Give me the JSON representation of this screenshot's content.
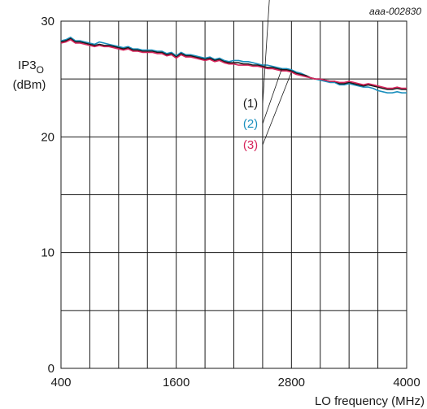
{
  "chart_data": {
    "type": "line",
    "figure_code": "aaa-002830",
    "ylabel": {
      "main": "IP3",
      "sub": "O",
      "unit": "(dBm)"
    },
    "xlabel": "LO frequency (MHz)",
    "xlim": [
      400,
      4000
    ],
    "ylim": [
      0,
      30
    ],
    "x_ticks": [
      400,
      1600,
      2800,
      4000
    ],
    "y_ticks": [
      0,
      10,
      20,
      30
    ],
    "x_grid": [
      400,
      700,
      1000,
      1300,
      1600,
      1900,
      2200,
      2500,
      2800,
      3100,
      3400,
      3700,
      4000
    ],
    "y_grid": [
      0,
      5,
      10,
      15,
      20,
      25,
      30
    ],
    "grid": true,
    "x": [
      400,
      450,
      500,
      550,
      600,
      650,
      700,
      750,
      800,
      850,
      900,
      950,
      1000,
      1050,
      1100,
      1150,
      1200,
      1250,
      1300,
      1350,
      1400,
      1450,
      1500,
      1550,
      1600,
      1650,
      1700,
      1750,
      1800,
      1850,
      1900,
      1950,
      2000,
      2050,
      2100,
      2150,
      2200,
      2250,
      2300,
      2350,
      2400,
      2450,
      2500,
      2550,
      2600,
      2650,
      2700,
      2750,
      2800,
      2850,
      2900,
      2950,
      3000,
      3050,
      3100,
      3150,
      3200,
      3250,
      3300,
      3350,
      3400,
      3450,
      3500,
      3550,
      3600,
      3650,
      3700,
      3750,
      3800,
      3850,
      3900,
      3950,
      4000
    ],
    "series": [
      {
        "name": "(1)",
        "color": "#1a1a1a",
        "values": [
          28.2,
          28.3,
          28.5,
          28.2,
          28.2,
          28.1,
          28.0,
          27.9,
          28.0,
          27.9,
          27.9,
          27.8,
          27.7,
          27.6,
          27.7,
          27.5,
          27.5,
          27.4,
          27.4,
          27.4,
          27.3,
          27.3,
          27.1,
          27.2,
          26.9,
          27.2,
          27.0,
          27.0,
          26.9,
          26.8,
          26.7,
          26.8,
          26.6,
          26.7,
          26.5,
          26.4,
          26.4,
          26.4,
          26.3,
          26.3,
          26.2,
          26.2,
          26.1,
          26.0,
          26.0,
          25.9,
          25.8,
          25.8,
          25.7,
          25.5,
          25.4,
          25.3,
          25.1,
          25.0,
          25.0,
          24.9,
          24.8,
          24.8,
          24.6,
          24.6,
          24.7,
          24.6,
          24.5,
          24.4,
          24.5,
          24.4,
          24.3,
          24.2,
          24.1,
          24.1,
          24.2,
          24.1,
          24.1
        ]
      },
      {
        "name": "(2)",
        "color": "#1a8fbd",
        "values": [
          28.3,
          28.4,
          28.6,
          28.3,
          28.3,
          28.2,
          28.1,
          28.0,
          28.2,
          28.1,
          28.0,
          27.9,
          27.8,
          27.7,
          27.8,
          27.6,
          27.6,
          27.5,
          27.5,
          27.5,
          27.4,
          27.4,
          27.2,
          27.3,
          27.0,
          27.3,
          27.1,
          27.1,
          27.0,
          26.9,
          26.8,
          26.9,
          26.7,
          26.8,
          26.6,
          26.5,
          26.6,
          26.6,
          26.5,
          26.5,
          26.4,
          26.3,
          26.2,
          26.2,
          26.1,
          26.0,
          25.9,
          25.9,
          25.8,
          25.6,
          25.5,
          25.3,
          25.1,
          25.0,
          24.9,
          24.8,
          24.7,
          24.7,
          24.5,
          24.5,
          24.6,
          24.5,
          24.4,
          24.3,
          24.3,
          24.2,
          24.0,
          23.9,
          23.8,
          23.8,
          23.9,
          23.8,
          23.8
        ]
      },
      {
        "name": "(3)",
        "color": "#d6245b",
        "values": [
          28.1,
          28.2,
          28.4,
          28.1,
          28.1,
          28.0,
          27.9,
          27.8,
          27.9,
          27.8,
          27.8,
          27.7,
          27.6,
          27.5,
          27.6,
          27.4,
          27.4,
          27.3,
          27.3,
          27.3,
          27.2,
          27.2,
          27.0,
          27.1,
          26.8,
          27.1,
          26.9,
          26.9,
          26.8,
          26.7,
          26.6,
          26.7,
          26.5,
          26.6,
          26.4,
          26.3,
          26.3,
          26.2,
          26.2,
          26.2,
          26.1,
          26.1,
          26.0,
          25.9,
          25.9,
          25.8,
          25.7,
          25.7,
          25.6,
          25.4,
          25.3,
          25.2,
          25.1,
          25.0,
          25.0,
          24.9,
          24.8,
          24.8,
          24.7,
          24.7,
          24.8,
          24.7,
          24.6,
          24.5,
          24.6,
          24.5,
          24.4,
          24.3,
          24.2,
          24.2,
          24.3,
          24.2,
          24.2
        ]
      }
    ],
    "legend_placement": "inside, leader lines to curves near 2800 MHz"
  }
}
